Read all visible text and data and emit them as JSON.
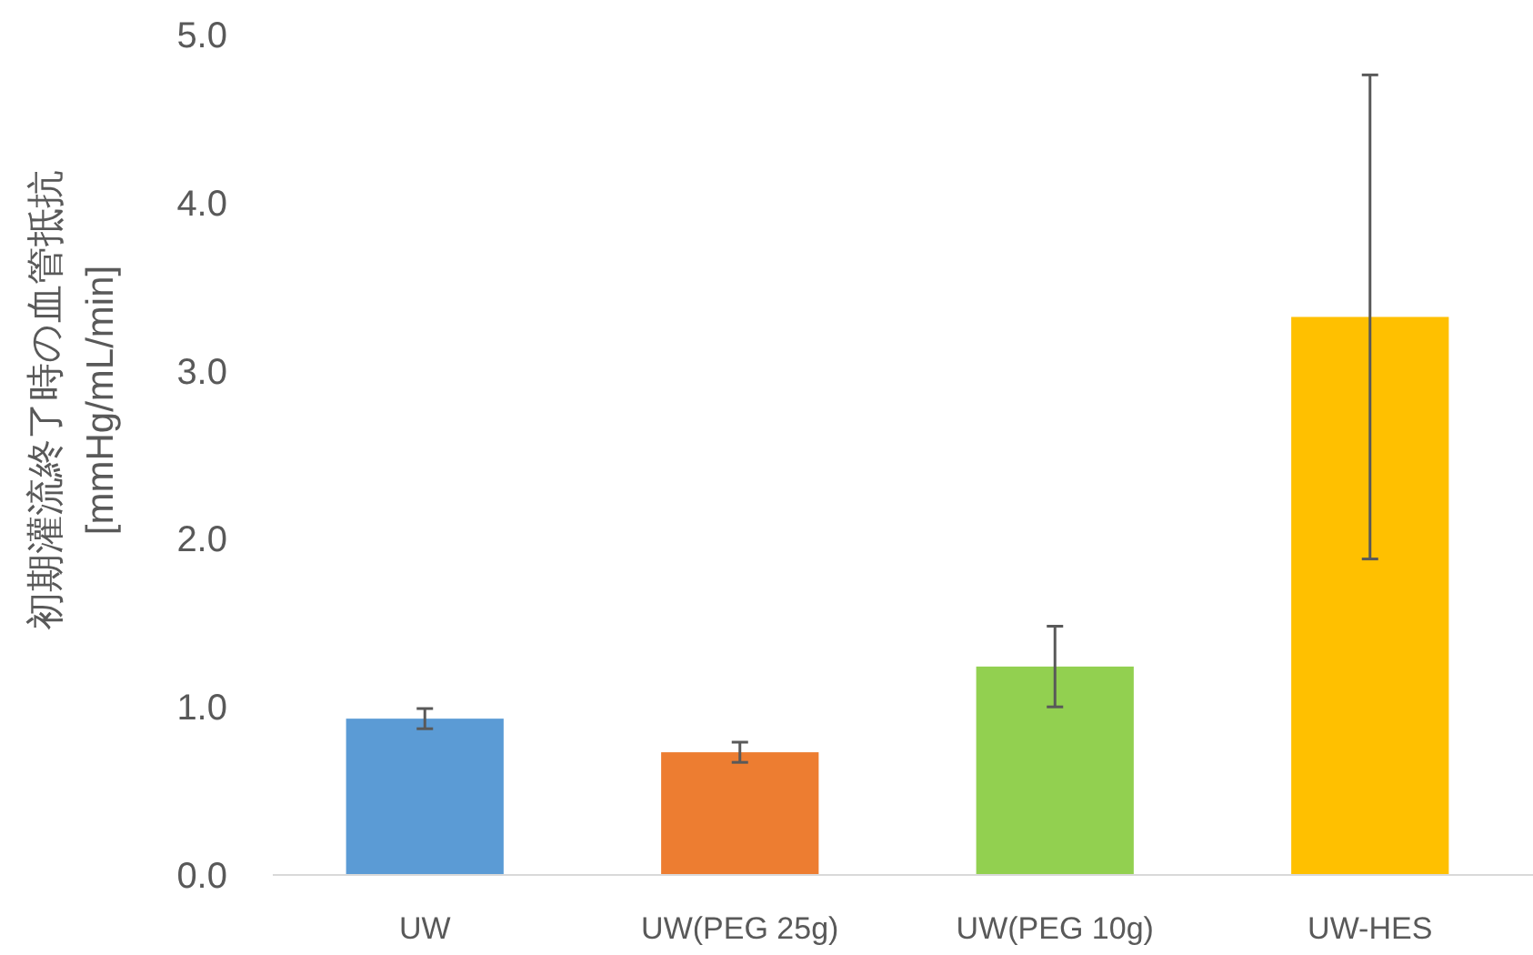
{
  "chart_data": {
    "type": "bar",
    "ylabel": "初期灌流終了時の血管抵抗\n[mmHg/mL/min]",
    "categories": [
      "UW",
      "UW(PEG 25g)",
      "UW(PEG 10g)",
      "UW-HES"
    ],
    "values": [
      0.93,
      0.73,
      1.24,
      3.32
    ],
    "errors": [
      0.06,
      0.06,
      0.24,
      1.44
    ],
    "colors": [
      "#5b9bd5",
      "#ed7d31",
      "#92d050",
      "#ffc000"
    ],
    "ylim": [
      0,
      5
    ],
    "yticks": [
      {
        "value": 0,
        "label": "0.0"
      },
      {
        "value": 1,
        "label": "1.0"
      },
      {
        "value": 2,
        "label": "2.0"
      },
      {
        "value": 3,
        "label": "3.0"
      },
      {
        "value": 4,
        "label": "4.0"
      },
      {
        "value": 5,
        "label": "5.0"
      }
    ],
    "grid": false
  }
}
